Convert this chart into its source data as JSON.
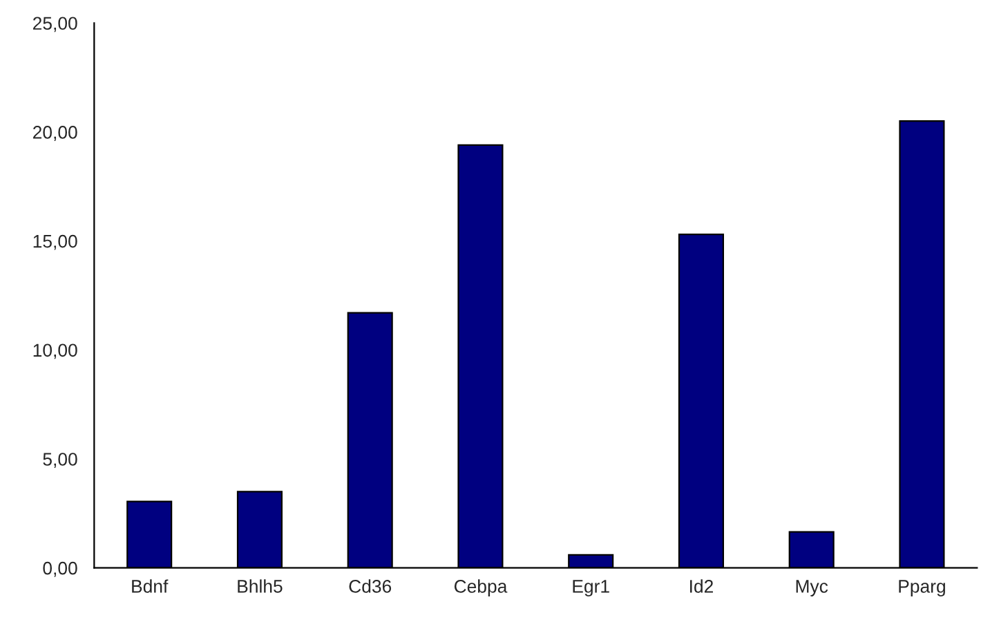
{
  "chart_data": {
    "type": "bar",
    "categories": [
      "Bdnf",
      "Bhlh5",
      "Cd36",
      "Cebpa",
      "Egr1",
      "Id2",
      "Myc",
      "Pparg"
    ],
    "values": [
      3.05,
      3.5,
      11.7,
      19.4,
      0.6,
      15.3,
      1.65,
      20.5
    ],
    "color": "#000080",
    "ylim": [
      0,
      25
    ],
    "yticks": [
      {
        "value": 0,
        "label": "0,00"
      },
      {
        "value": 5,
        "label": "5,00"
      },
      {
        "value": 10,
        "label": "10,00"
      },
      {
        "value": 15,
        "label": "15,00"
      },
      {
        "value": 20,
        "label": "20,00"
      },
      {
        "value": 25,
        "label": "25,00"
      }
    ],
    "grid": false
  }
}
